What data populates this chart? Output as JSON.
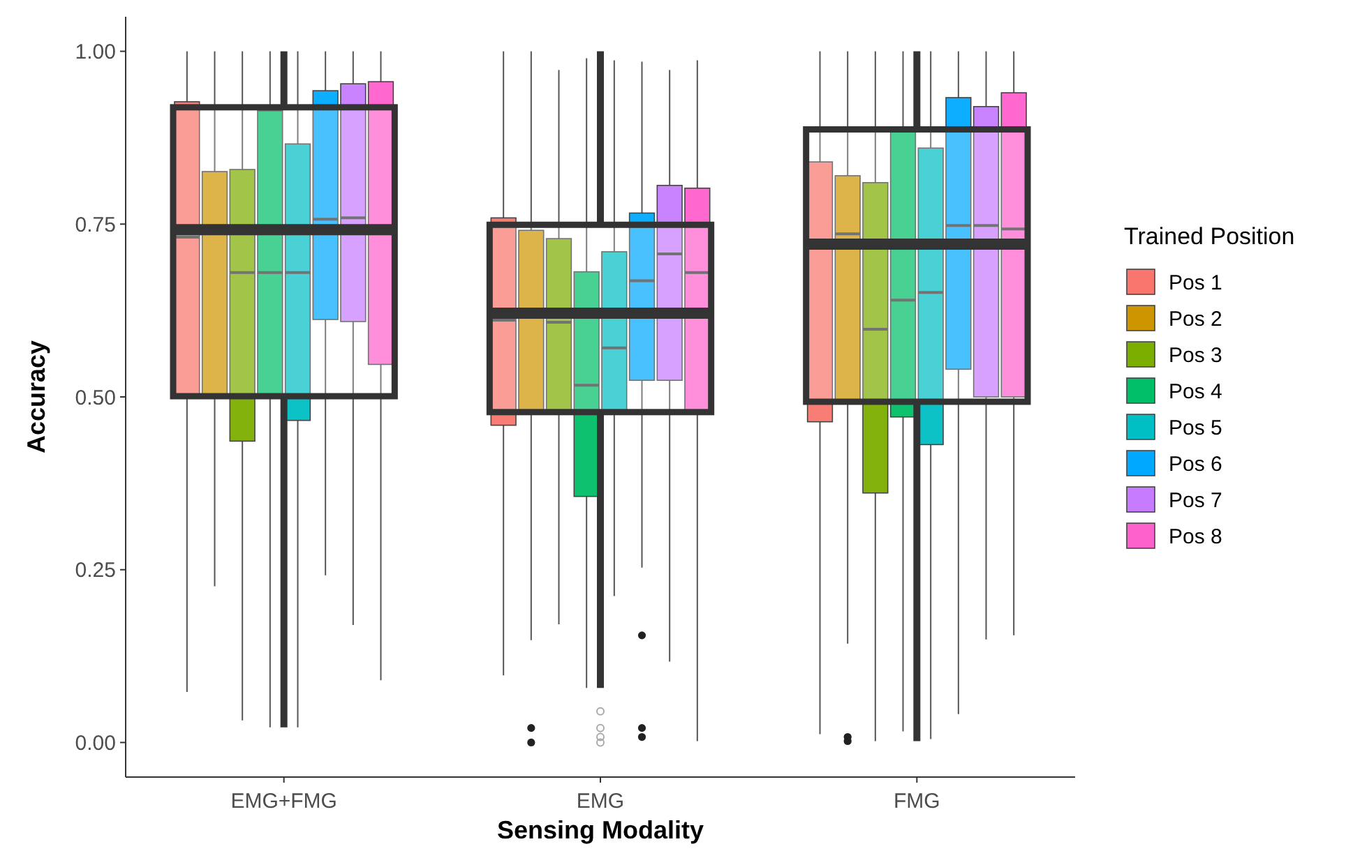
{
  "chart_data": {
    "type": "box",
    "xlabel": "Sensing Modality",
    "ylabel": "Accuracy",
    "legend_title": "Trained Position",
    "legend": "right",
    "grid": false,
    "categories": [
      "EMG+FMG",
      "EMG",
      "FMG"
    ],
    "ylim": [
      -0.05,
      1.05
    ],
    "yticks": [
      {
        "value": 0,
        "label": "0.00"
      },
      {
        "value": 0.25,
        "label": "0.25"
      },
      {
        "value": 0.5,
        "label": "0.50"
      },
      {
        "value": 0.75,
        "label": "0.75"
      },
      {
        "value": 1,
        "label": "1.00"
      }
    ],
    "color": "#333333",
    "boxes": [
      {
        "low": 0.022,
        "q1": 0.501,
        "median": 0.742,
        "q3": 0.919,
        "high": 1.0
      },
      {
        "low": 0.079,
        "q1": 0.478,
        "median": 0.621,
        "q3": 0.749,
        "high": 1.0,
        "outliers": [
          0.045,
          0.021,
          0.008,
          0.0
        ]
      },
      {
        "low": 0.002,
        "q1": 0.493,
        "median": 0.721,
        "q3": 0.887,
        "high": 1.0
      }
    ],
    "series": [
      {
        "name": "Pos 1",
        "color": "#f8766d",
        "boxes": [
          {
            "low": 0.073,
            "q1": 0.5,
            "median": 0.731,
            "q3": 0.927,
            "high": 1.0
          },
          {
            "low": 0.097,
            "q1": 0.459,
            "median": 0.611,
            "q3": 0.759,
            "high": 1.0
          },
          {
            "low": 0.012,
            "q1": 0.464,
            "median": null,
            "q3": 0.84,
            "high": 1.0
          }
        ]
      },
      {
        "name": "Pos 2",
        "color": "#cd9600",
        "boxes": [
          {
            "low": 0.226,
            "q1": 0.5,
            "median": null,
            "q3": 0.826,
            "high": 1.0
          },
          {
            "low": 0.148,
            "q1": 0.478,
            "median": null,
            "q3": 0.741,
            "high": 1.0,
            "outliers": [
              0.021,
              0.0
            ]
          },
          {
            "low": 0.143,
            "q1": 0.495,
            "median": 0.736,
            "q3": 0.82,
            "high": 1.0,
            "outliers": [
              0.008,
              0.002
            ]
          }
        ]
      },
      {
        "name": "Pos 3",
        "color": "#7cae00",
        "boxes": [
          {
            "low": 0.032,
            "q1": 0.436,
            "median": 0.68,
            "q3": 0.829,
            "high": 1.0
          },
          {
            "low": 0.171,
            "q1": 0.478,
            "median": 0.608,
            "q3": 0.729,
            "high": 0.973
          },
          {
            "low": 0.002,
            "q1": 0.361,
            "median": 0.598,
            "q3": 0.81,
            "high": 1.0
          }
        ]
      },
      {
        "name": "Pos 4",
        "color": "#00be67",
        "boxes": [
          {
            "low": 0.022,
            "q1": 0.5,
            "median": 0.68,
            "q3": 0.914,
            "high": 1.0
          },
          {
            "low": 0.079,
            "q1": 0.356,
            "median": 0.517,
            "q3": 0.681,
            "high": 0.99
          },
          {
            "low": 0.016,
            "q1": 0.471,
            "median": 0.64,
            "q3": 0.884,
            "high": 1.0
          }
        ]
      },
      {
        "name": "Pos 5",
        "color": "#00bfc4",
        "boxes": [
          {
            "low": 0.022,
            "q1": 0.466,
            "median": 0.68,
            "q3": 0.866,
            "high": 1.0
          },
          {
            "low": 0.212,
            "q1": 0.478,
            "median": 0.571,
            "q3": 0.71,
            "high": 0.987
          },
          {
            "low": 0.005,
            "q1": 0.431,
            "median": 0.651,
            "q3": 0.86,
            "high": 1.0
          }
        ]
      },
      {
        "name": "Pos 6",
        "color": "#00a9ff",
        "boxes": [
          {
            "low": 0.242,
            "q1": 0.612,
            "median": 0.757,
            "q3": 0.943,
            "high": 1.0
          },
          {
            "low": 0.253,
            "q1": 0.524,
            "median": 0.668,
            "q3": 0.766,
            "high": 0.985,
            "outliers": [
              0.155,
              0.021,
              0.008
            ]
          },
          {
            "low": 0.041,
            "q1": 0.54,
            "median": 0.748,
            "q3": 0.933,
            "high": 1.0
          }
        ]
      },
      {
        "name": "Pos 7",
        "color": "#c77cff",
        "boxes": [
          {
            "low": 0.17,
            "q1": 0.609,
            "median": 0.759,
            "q3": 0.953,
            "high": 1.0
          },
          {
            "low": 0.117,
            "q1": 0.524,
            "median": 0.707,
            "q3": 0.806,
            "high": 0.973
          },
          {
            "low": 0.149,
            "q1": 0.5,
            "median": 0.748,
            "q3": 0.92,
            "high": 1.0
          }
        ]
      },
      {
        "name": "Pos 8",
        "color": "#ff61cc",
        "boxes": [
          {
            "low": 0.09,
            "q1": 0.547,
            "median": null,
            "q3": 0.956,
            "high": 1.0
          },
          {
            "low": 0.002,
            "q1": 0.478,
            "median": 0.68,
            "q3": 0.802,
            "high": 0.987
          },
          {
            "low": 0.155,
            "q1": 0.5,
            "median": 0.743,
            "q3": 0.94,
            "high": 1.0
          }
        ]
      }
    ]
  }
}
